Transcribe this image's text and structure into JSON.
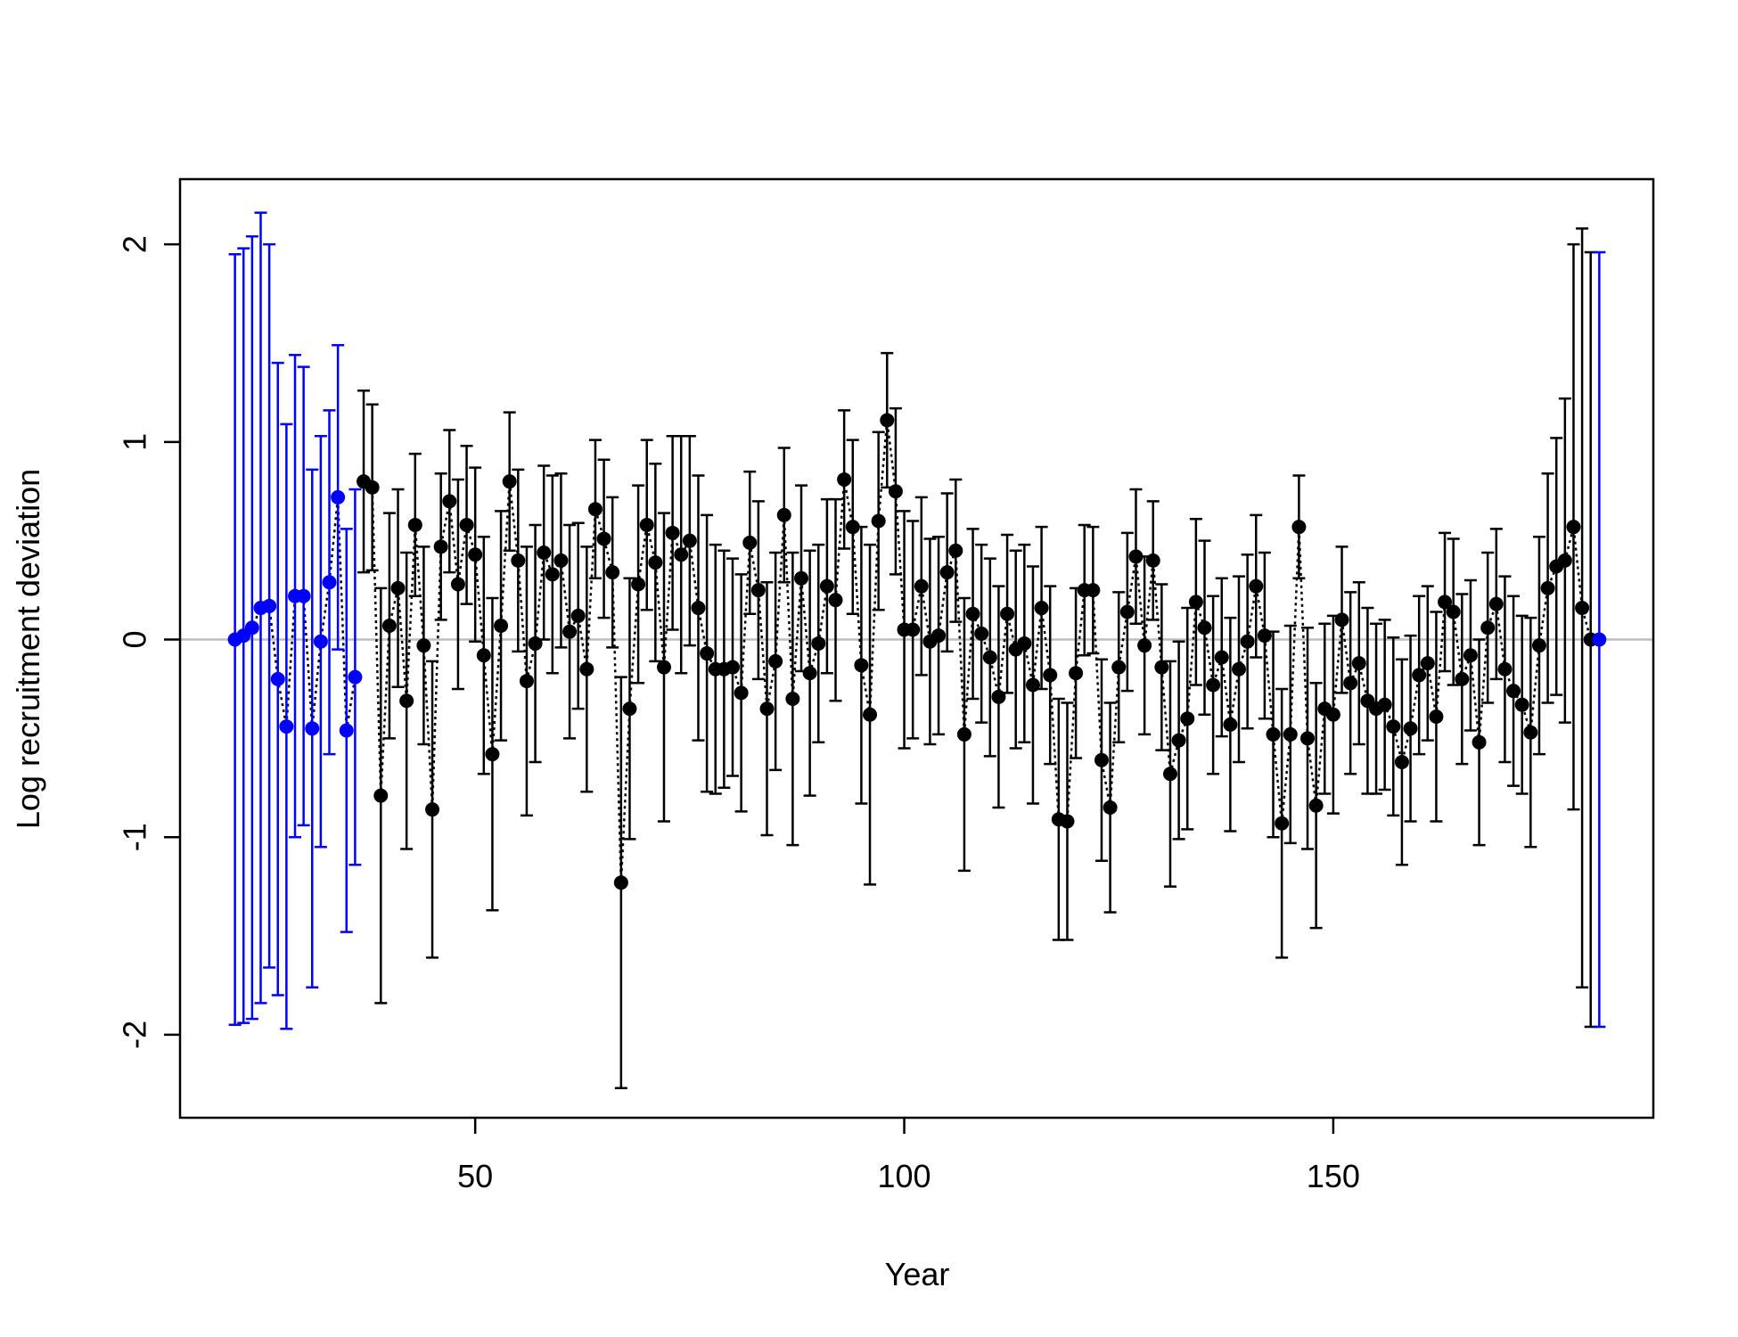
{
  "chart_data": {
    "type": "errorbar",
    "xlabel": "Year",
    "ylabel": "Log recruitment deviation",
    "xlim": [
      15.6,
      187.3
    ],
    "ylim": [
      -2.42,
      2.33
    ],
    "xticks": [
      50,
      100,
      150
    ],
    "yticks": [
      -2,
      -1,
      0,
      1,
      2
    ],
    "reference_line": 0,
    "reference_color": "#bebebe",
    "line_color": "#000000",
    "series": [
      {
        "color": "#0000ff",
        "x": [
          22,
          23,
          24,
          25,
          26,
          27,
          28,
          29,
          30,
          31,
          32,
          33,
          34,
          35,
          36
        ],
        "values": [
          0.0,
          0.02,
          0.06,
          0.16,
          0.17,
          -0.2,
          -0.44,
          0.22,
          0.22,
          -0.45,
          -0.01,
          0.29,
          0.72,
          -0.46,
          -0.19
        ],
        "errors": [
          1.95,
          1.96,
          1.98,
          2.0,
          1.83,
          1.6,
          1.53,
          1.22,
          1.16,
          1.31,
          1.04,
          0.87,
          0.77,
          1.02,
          0.95
        ]
      },
      {
        "color": "#000000",
        "x": [
          37,
          38,
          39,
          40,
          41,
          42,
          43,
          44,
          45,
          46,
          47,
          48,
          49,
          50,
          51,
          52,
          53,
          54,
          55,
          56,
          57,
          58,
          59,
          60,
          61,
          62,
          63,
          64,
          65,
          66,
          67,
          68,
          69,
          70,
          71,
          72,
          73,
          74,
          75,
          76,
          77,
          78,
          79,
          80,
          81,
          82,
          83,
          84,
          85,
          86,
          87,
          88,
          89,
          90,
          91,
          92,
          93,
          94,
          95,
          96,
          97,
          98,
          99,
          100,
          101,
          102,
          103,
          104,
          105,
          106,
          107,
          108,
          109,
          110,
          111,
          112,
          113,
          114,
          115,
          116,
          117,
          118,
          119,
          120,
          121,
          122,
          123,
          124,
          125,
          126,
          127,
          128,
          129,
          130,
          131,
          132,
          133,
          134,
          135,
          136,
          137,
          138,
          139,
          140,
          141,
          142,
          143,
          144,
          145,
          146,
          147,
          148,
          149,
          150,
          151,
          152,
          153,
          154,
          155,
          156,
          157,
          158,
          159,
          160,
          161,
          162,
          163,
          164,
          165,
          166,
          167,
          168,
          169,
          170,
          171,
          172,
          173,
          174,
          175,
          176,
          177,
          178,
          179,
          180
        ],
        "values": [
          0.8,
          0.77,
          -0.79,
          0.07,
          0.26,
          -0.31,
          0.58,
          -0.03,
          -0.86,
          0.47,
          0.7,
          0.28,
          0.58,
          0.43,
          -0.08,
          -0.58,
          0.07,
          0.8,
          0.4,
          -0.21,
          -0.02,
          0.44,
          0.33,
          0.4,
          0.04,
          0.12,
          -0.15,
          0.66,
          0.51,
          0.34,
          -1.23,
          -0.35,
          0.28,
          0.58,
          0.39,
          -0.14,
          0.54,
          0.43,
          0.5,
          0.16,
          -0.07,
          -0.15,
          -0.15,
          -0.14,
          -0.27,
          0.49,
          0.25,
          -0.35,
          -0.11,
          0.63,
          -0.3,
          0.31,
          -0.17,
          -0.02,
          0.27,
          0.2,
          0.81,
          0.57,
          -0.13,
          -0.38,
          0.6,
          1.11,
          0.75,
          0.05,
          0.05,
          0.27,
          -0.01,
          0.02,
          0.34,
          0.45,
          -0.48,
          0.13,
          0.03,
          -0.09,
          -0.29,
          0.13,
          -0.05,
          -0.02,
          -0.23,
          0.16,
          -0.18,
          -0.91,
          -0.92,
          -0.17,
          0.25,
          0.25,
          -0.61,
          -0.85,
          -0.14,
          0.14,
          0.42,
          -0.03,
          0.4,
          -0.14,
          -0.68,
          -0.51,
          -0.4,
          0.19,
          0.06,
          -0.23,
          -0.09,
          -0.43,
          -0.15,
          -0.01,
          0.27,
          0.02,
          -0.48,
          -0.93,
          -0.48,
          0.57,
          -0.5,
          -0.84,
          -0.35,
          -0.38,
          0.1,
          -0.22,
          -0.12,
          -0.31,
          -0.35,
          -0.33,
          -0.44,
          -0.62,
          -0.45,
          -0.18,
          -0.12,
          -0.39,
          0.19,
          0.14,
          -0.2,
          -0.08,
          -0.52,
          0.06,
          0.18,
          -0.15,
          -0.26,
          -0.33,
          -0.47,
          -0.03,
          0.26,
          0.37,
          0.4,
          0.57,
          0.16,
          0.0
        ],
        "errors": [
          0.46,
          0.42,
          1.05,
          0.57,
          0.5,
          0.75,
          0.36,
          0.5,
          0.75,
          0.37,
          0.36,
          0.53,
          0.4,
          0.44,
          0.6,
          0.79,
          0.58,
          0.35,
          0.46,
          0.68,
          0.6,
          0.44,
          0.5,
          0.44,
          0.54,
          0.47,
          0.62,
          0.35,
          0.4,
          0.38,
          1.04,
          0.66,
          0.5,
          0.43,
          0.5,
          0.78,
          0.49,
          0.6,
          0.53,
          0.67,
          0.7,
          0.63,
          0.6,
          0.55,
          0.6,
          0.36,
          0.45,
          0.64,
          0.55,
          0.34,
          0.74,
          0.47,
          0.62,
          0.5,
          0.44,
          0.51,
          0.35,
          0.44,
          0.7,
          0.86,
          0.45,
          0.34,
          0.42,
          0.6,
          0.55,
          0.45,
          0.52,
          0.5,
          0.4,
          0.36,
          0.69,
          0.43,
          0.45,
          0.5,
          0.56,
          0.4,
          0.5,
          0.5,
          0.6,
          0.41,
          0.45,
          0.61,
          0.6,
          0.43,
          0.33,
          0.32,
          0.51,
          0.53,
          0.38,
          0.4,
          0.34,
          0.45,
          0.3,
          0.42,
          0.57,
          0.5,
          0.56,
          0.42,
          0.44,
          0.45,
          0.4,
          0.54,
          0.47,
          0.44,
          0.36,
          0.42,
          0.52,
          0.68,
          0.55,
          0.26,
          0.56,
          0.62,
          0.43,
          0.5,
          0.37,
          0.46,
          0.41,
          0.47,
          0.43,
          0.43,
          0.45,
          0.52,
          0.47,
          0.4,
          0.39,
          0.53,
          0.35,
          0.37,
          0.43,
          0.38,
          0.52,
          0.38,
          0.38,
          0.47,
          0.48,
          0.45,
          0.58,
          0.55,
          0.58,
          0.65,
          0.82,
          1.43,
          1.92,
          1.96
        ]
      },
      {
        "color": "#0000ff",
        "x": [
          181
        ],
        "values": [
          0.0
        ],
        "errors": [
          1.96
        ]
      }
    ]
  }
}
